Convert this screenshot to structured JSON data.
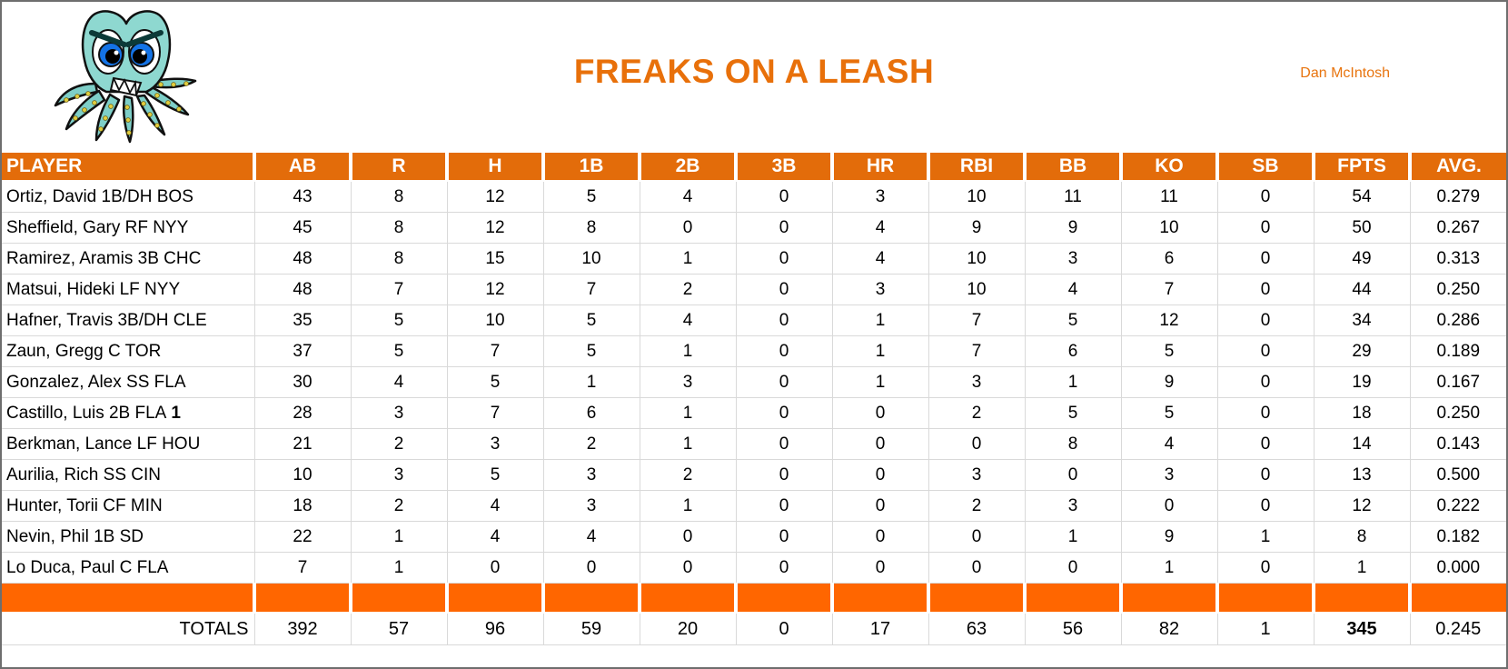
{
  "page": {
    "title": "FREAKS ON A LEASH",
    "owner": "Dan McIntosh",
    "logo": "angry-octopus-mascot"
  },
  "colors": {
    "header_bg": "#E36C0A",
    "separator_bg": "#FF6600",
    "title_text": "#E8700A",
    "grid_line": "#D9D9D9"
  },
  "table": {
    "columns": [
      "PLAYER",
      "AB",
      "R",
      "H",
      "1B",
      "2B",
      "3B",
      "HR",
      "RBI",
      "BB",
      "KO",
      "SB",
      "FPTS",
      "AVG."
    ],
    "rows": [
      {
        "player": "Ortiz, David 1B/DH BOS",
        "player_suffix": "",
        "stats": [
          43,
          8,
          12,
          5,
          4,
          0,
          3,
          10,
          11,
          11,
          0,
          54,
          "0.279"
        ]
      },
      {
        "player": "Sheffield, Gary RF NYY",
        "player_suffix": "",
        "stats": [
          45,
          8,
          12,
          8,
          0,
          0,
          4,
          9,
          9,
          10,
          0,
          50,
          "0.267"
        ]
      },
      {
        "player": "Ramirez, Aramis 3B CHC",
        "player_suffix": "",
        "stats": [
          48,
          8,
          15,
          10,
          1,
          0,
          4,
          10,
          3,
          6,
          0,
          49,
          "0.313"
        ]
      },
      {
        "player": "Matsui, Hideki LF NYY",
        "player_suffix": "",
        "stats": [
          48,
          7,
          12,
          7,
          2,
          0,
          3,
          10,
          4,
          7,
          0,
          44,
          "0.250"
        ]
      },
      {
        "player": "Hafner, Travis 3B/DH CLE",
        "player_suffix": "",
        "stats": [
          35,
          5,
          10,
          5,
          4,
          0,
          1,
          7,
          5,
          12,
          0,
          34,
          "0.286"
        ]
      },
      {
        "player": "Zaun, Gregg C TOR",
        "player_suffix": "",
        "stats": [
          37,
          5,
          7,
          5,
          1,
          0,
          1,
          7,
          6,
          5,
          0,
          29,
          "0.189"
        ]
      },
      {
        "player": "Gonzalez, Alex SS FLA",
        "player_suffix": "",
        "stats": [
          30,
          4,
          5,
          1,
          3,
          0,
          1,
          3,
          1,
          9,
          0,
          19,
          "0.167"
        ]
      },
      {
        "player": "Castillo, Luis 2B FLA",
        "player_suffix": "1",
        "stats": [
          28,
          3,
          7,
          6,
          1,
          0,
          0,
          2,
          5,
          5,
          0,
          18,
          "0.250"
        ]
      },
      {
        "player": "Berkman, Lance LF HOU",
        "player_suffix": "",
        "stats": [
          21,
          2,
          3,
          2,
          1,
          0,
          0,
          0,
          8,
          4,
          0,
          14,
          "0.143"
        ]
      },
      {
        "player": "Aurilia, Rich SS CIN",
        "player_suffix": "",
        "stats": [
          10,
          3,
          5,
          3,
          2,
          0,
          0,
          3,
          0,
          3,
          0,
          13,
          "0.500"
        ]
      },
      {
        "player": "Hunter, Torii CF MIN",
        "player_suffix": "",
        "stats": [
          18,
          2,
          4,
          3,
          1,
          0,
          0,
          2,
          3,
          0,
          0,
          12,
          "0.222"
        ]
      },
      {
        "player": "Nevin, Phil 1B SD",
        "player_suffix": "",
        "stats": [
          22,
          1,
          4,
          4,
          0,
          0,
          0,
          0,
          1,
          9,
          1,
          8,
          "0.182"
        ]
      },
      {
        "player": "Lo Duca, Paul C FLA",
        "player_suffix": "",
        "stats": [
          7,
          1,
          0,
          0,
          0,
          0,
          0,
          0,
          0,
          1,
          0,
          1,
          "0.000"
        ]
      }
    ],
    "totals_label": "TOTALS",
    "totals": [
      392,
      57,
      96,
      59,
      20,
      0,
      17,
      63,
      56,
      82,
      1,
      345,
      "0.245"
    ]
  }
}
